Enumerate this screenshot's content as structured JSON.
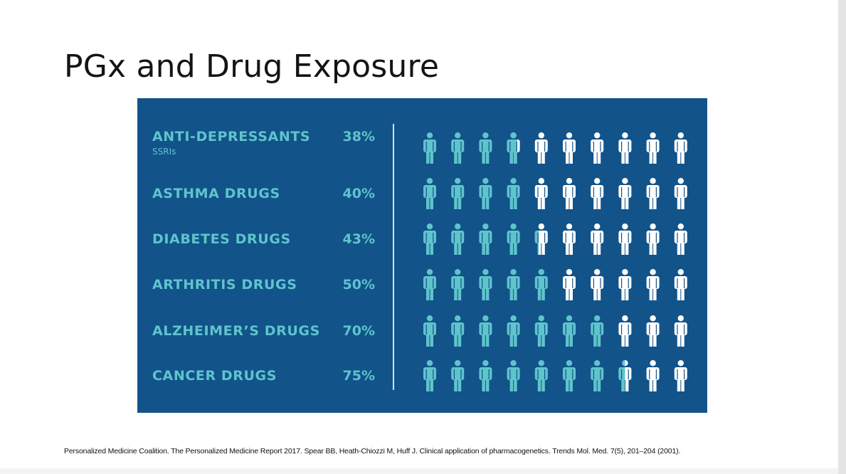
{
  "slide": {
    "title": "PGx and Drug Exposure",
    "citation": "Personalized Medicine Coalition. The Personalized Medicine Report 2017. Spear BB, Heath-Chiozzi M, Huff J. Clinical application of pharmacogenetics. Trends Mol. Med. 7(5), 201–204 (2001)."
  },
  "colors": {
    "panel_background": "#12538a",
    "label_color": "#5fc4cc",
    "filled_figure": "#5fc4cc",
    "empty_figure": "#ffffff",
    "divider": "#cfe3ee"
  },
  "icons": {
    "figure": "person-icon"
  },
  "chart_data": {
    "type": "table",
    "figures_per_row": 10,
    "rows": [
      {
        "label": "ANTI-DEPRESSANTS",
        "sublabel": "SSRIs",
        "percent_label": "38%",
        "value": 38
      },
      {
        "label": "ASTHMA DRUGS",
        "sublabel": "",
        "percent_label": "40%",
        "value": 40
      },
      {
        "label": "DIABETES DRUGS",
        "sublabel": "",
        "percent_label": "43%",
        "value": 43
      },
      {
        "label": "ARTHRITIS DRUGS",
        "sublabel": "",
        "percent_label": "50%",
        "value": 50
      },
      {
        "label": "ALZHEIMER’S DRUGS",
        "sublabel": "",
        "percent_label": "70%",
        "value": 70
      },
      {
        "label": "CANCER DRUGS",
        "sublabel": "",
        "percent_label": "75%",
        "value": 75
      }
    ]
  }
}
